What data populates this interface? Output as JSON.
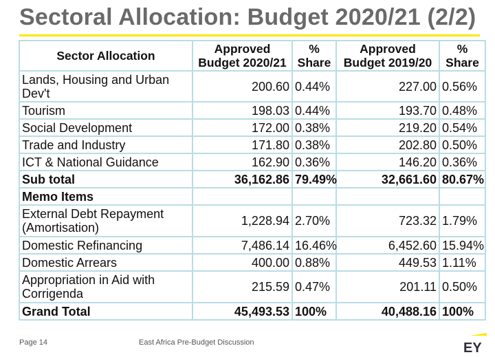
{
  "title": "Sectoral Allocation: Budget 2020/21 (2/2)",
  "table": {
    "headers": {
      "sector": "Sector Allocation",
      "approved_2021_line1": "Approved",
      "approved_2021_line2": "Budget 2020/21",
      "share_2021_line1": "%",
      "share_2021_line2": "Share",
      "approved_1920_line1": "Approved",
      "approved_1920_line2": "Budget 2019/20",
      "share_1920_line1": "%",
      "share_1920_line2": "Share"
    },
    "rows": [
      {
        "sector": "Lands, Housing and Urban Dev't",
        "b2021": "200.60",
        "s2021": "0.44%",
        "b1920": "227.00",
        "s1920": "0.56%"
      },
      {
        "sector": "Tourism",
        "b2021": "198.03",
        "s2021": "0.44%",
        "b1920": "193.70",
        "s1920": "0.48%"
      },
      {
        "sector": "Social Development",
        "b2021": "172.00",
        "s2021": "0.38%",
        "b1920": "219.20",
        "s1920": "0.54%"
      },
      {
        "sector": "Trade and Industry",
        "b2021": "171.80",
        "s2021": "0.38%",
        "b1920": "202.80",
        "s1920": "0.50%"
      },
      {
        "sector": "ICT & National Guidance",
        "b2021": "162.90",
        "s2021": "0.36%",
        "b1920": "146.20",
        "s1920": "0.36%"
      },
      {
        "sector": "Sub total",
        "b2021": "36,162.86",
        "s2021": "79.49%",
        "b1920": "32,661.60",
        "s1920": "80.67%"
      },
      {
        "sector": "Memo Items",
        "b2021": "",
        "s2021": "",
        "b1920": "",
        "s1920": ""
      },
      {
        "sector": "External Debt Repayment (Amortisation)",
        "b2021": "1,228.94",
        "s2021": "2.70%",
        "b1920": "723.32",
        "s1920": "1.79%"
      },
      {
        "sector": "Domestic Refinancing",
        "b2021": "7,486.14",
        "s2021": "16.46%",
        "b1920": "6,452.60",
        "s1920": "15.94%"
      },
      {
        "sector": "Domestic Arrears",
        "b2021": "400.00",
        "s2021": "0.88%",
        "b1920": "449.53",
        "s1920": "1.11%"
      },
      {
        "sector": "Appropriation in Aid with Corrigenda",
        "b2021": "215.59",
        "s2021": "0.47%",
        "b1920": "201.11",
        "s1920": "0.50%"
      },
      {
        "sector": "Grand Total",
        "b2021": "45,493.53",
        "s2021": "100%",
        "b1920": "40,488.16",
        "s1920": "100%"
      }
    ]
  },
  "footer": {
    "page": "Page 14",
    "text": "East Africa Pre-Budget Discussion",
    "logo": "EY"
  },
  "colors": {
    "title": "#6a6a6a",
    "accent_yellow": "#ffe600",
    "grid": "#b9dce6"
  }
}
